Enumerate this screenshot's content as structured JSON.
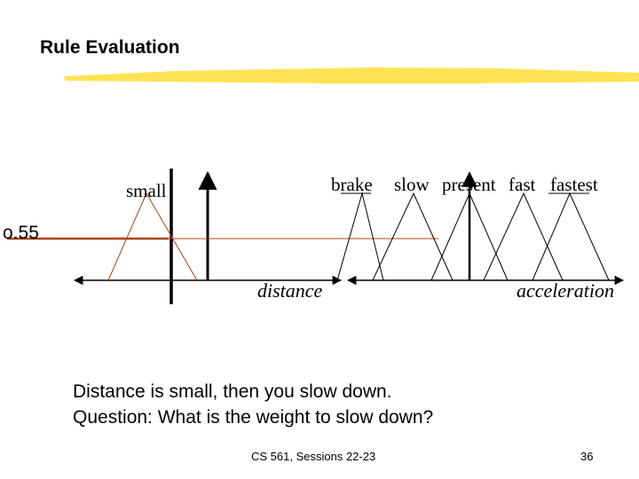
{
  "slide": {
    "title": "Rule Evaluation",
    "body_lines": [
      "Distance is small, then you slow down.",
      "Question: What is the weight to slow down?"
    ],
    "footer": "CS 561,  Sessions 22-23",
    "page_number": "36"
  },
  "diagram": {
    "distance_axis_label": "distance",
    "acceleration_axis_label": "acceleration",
    "distance_sets": [
      {
        "label": "small"
      }
    ],
    "acceleration_sets": [
      {
        "label": "brake"
      },
      {
        "label": "slow"
      },
      {
        "label": "present"
      },
      {
        "label": "fast"
      },
      {
        "label": "fastest"
      }
    ],
    "membership_value": "o.55",
    "colors": {
      "highlight": "#ffe040",
      "rule_line": "#b04010",
      "axis": "#000000"
    }
  }
}
